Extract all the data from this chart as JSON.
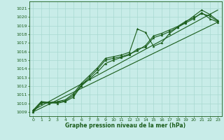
{
  "xlabel": "Graphe pression niveau de la mer (hPa)",
  "xlim": [
    -0.5,
    23.5
  ],
  "ylim": [
    1008.5,
    1021.8
  ],
  "yticks": [
    1009,
    1010,
    1011,
    1012,
    1013,
    1014,
    1015,
    1016,
    1017,
    1018,
    1019,
    1020,
    1021
  ],
  "xticks": [
    0,
    1,
    2,
    3,
    4,
    5,
    6,
    7,
    8,
    9,
    10,
    11,
    12,
    13,
    14,
    15,
    16,
    17,
    18,
    19,
    20,
    21,
    22,
    23
  ],
  "bg_color": "#c8ece8",
  "line_color": "#1a5c1a",
  "grid_color": "#a8d8d0",
  "series1": [
    1009.2,
    1010.2,
    1010.1,
    1010.2,
    1010.4,
    1011.1,
    1012.3,
    1013.2,
    1014.1,
    1015.2,
    1015.4,
    1015.6,
    1015.9,
    1018.6,
    1018.2,
    1016.6,
    1017.0,
    1018.1,
    1018.8,
    1019.4,
    1020.1,
    1020.8,
    1020.3,
    1019.6
  ],
  "series2": [
    1009.1,
    1010.1,
    1010.0,
    1010.1,
    1010.3,
    1010.9,
    1012.1,
    1013.0,
    1013.9,
    1015.0,
    1015.2,
    1015.4,
    1015.7,
    1016.1,
    1016.7,
    1017.8,
    1018.1,
    1018.5,
    1018.9,
    1019.5,
    1019.9,
    1020.4,
    1020.1,
    1019.5
  ],
  "series3": [
    1009.0,
    1010.0,
    1010.1,
    1010.0,
    1010.2,
    1010.7,
    1012.0,
    1012.8,
    1013.6,
    1014.6,
    1015.0,
    1015.3,
    1015.6,
    1016.3,
    1016.5,
    1017.6,
    1017.9,
    1018.3,
    1018.8,
    1019.3,
    1019.8,
    1020.5,
    1019.8,
    1019.4
  ],
  "trend1_x": [
    0,
    23
  ],
  "trend1_y": [
    1009.0,
    1019.4
  ],
  "trend2_x": [
    0,
    23
  ],
  "trend2_y": [
    1009.2,
    1020.8
  ]
}
